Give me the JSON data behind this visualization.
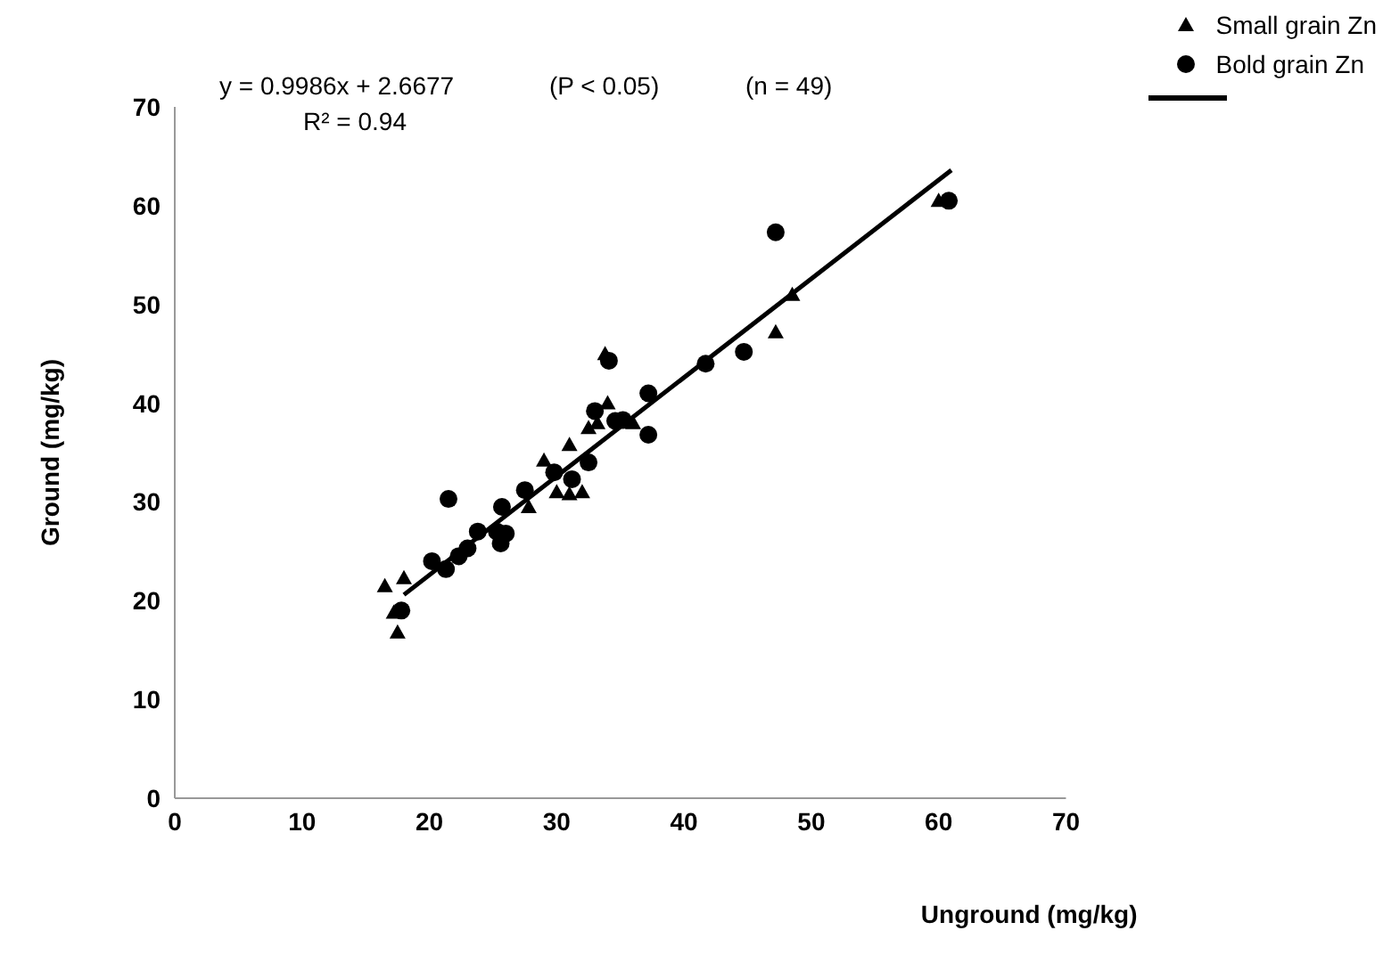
{
  "chart_data": {
    "type": "scatter",
    "xlabel": "Unground (mg/kg)",
    "ylabel": "Ground (mg/kg)",
    "annotations": [
      "y = 0.9986x + 2.6677",
      "R² = 0.94",
      "(P < 0.05)",
      "(n = 49)"
    ],
    "xlim": [
      0,
      70
    ],
    "xticks": [
      0,
      10,
      20,
      30,
      40,
      50,
      60,
      70
    ],
    "ylim": [
      0,
      70
    ],
    "yticks": [
      0,
      10,
      20,
      30,
      40,
      50,
      60,
      70
    ],
    "grid": false,
    "legend": "top right",
    "series": [
      {
        "name": "Small grain Zn",
        "marker": "triangle",
        "color": "#000000",
        "x": [
          16.5,
          17.2,
          17.5,
          18,
          20,
          25,
          27.8,
          29,
          30,
          31,
          32,
          31,
          32.5,
          33.2,
          34,
          33.8,
          36,
          47.2,
          48.5,
          60
        ],
        "values": [
          21.5,
          18.8,
          16.8,
          22.3,
          null,
          null,
          29.5,
          34.2,
          31,
          30.8,
          31,
          35.8,
          37.5,
          38,
          40,
          45,
          38,
          47.2,
          51,
          60.5
        ]
      },
      {
        "name": "Bold grain Zn",
        "marker": "circle",
        "color": "#000000",
        "x": [
          17.8,
          20.2,
          21.3,
          21.5,
          22.3,
          23,
          23.8,
          25.3,
          25.6,
          25.7,
          26,
          27.5,
          29.8,
          31.2,
          32.5,
          33,
          34.1,
          34.6,
          35.2,
          37.2,
          37.2,
          41.7,
          44.7,
          47.2,
          60.8
        ],
        "values": [
          19,
          24,
          23.2,
          30.3,
          24.5,
          25.3,
          27,
          27,
          25.8,
          29.5,
          26.8,
          31.2,
          33,
          32.3,
          34,
          39.2,
          44.3,
          38.2,
          38.3,
          36.8,
          41,
          44,
          45.2,
          57.3,
          60.5
        ]
      },
      {
        "type": "line",
        "marker": "none",
        "line_style": "solid",
        "color": "#000000",
        "x": [
          18,
          61
        ],
        "values": [
          20.6,
          63.6
        ]
      }
    ]
  }
}
